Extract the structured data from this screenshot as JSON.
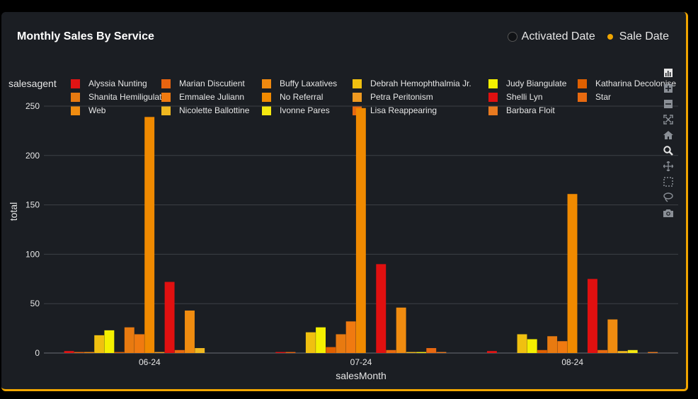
{
  "header": {
    "title": "Monthly Sales By Service",
    "radio_options": [
      {
        "label": "Activated Date",
        "selected": false
      },
      {
        "label": "Sale Date",
        "selected": true
      }
    ]
  },
  "legend_title": "salesagent",
  "colors": {
    "accent": "#f0a500",
    "card_bg": "#1b1e23",
    "grid": "#3c4046"
  },
  "modebar_icons": [
    "bar-chart-icon",
    "zoom-in-icon",
    "zoom-out-icon",
    "autoscale-icon",
    "home-icon",
    "zoom-icon",
    "pan-icon",
    "box-select-icon",
    "lasso-icon",
    "camera-icon"
  ],
  "chart_data": {
    "type": "bar",
    "xlabel": "salesMonth",
    "ylabel": "total",
    "ylim": [
      0,
      255
    ],
    "yticks": [
      0,
      50,
      100,
      150,
      200,
      250
    ],
    "categories": [
      "06-24",
      "07-24",
      "08-24"
    ],
    "grid": true,
    "legend_position": "top",
    "series": [
      {
        "name": "Alyssia Nunting",
        "color": "#e01414",
        "values": [
          2,
          1,
          2
        ]
      },
      {
        "name": "Marian Discutient",
        "color": "#e86410",
        "values": [
          1,
          1,
          0
        ]
      },
      {
        "name": "Buffy Laxatives",
        "color": "#f08a10",
        "values": [
          1,
          0,
          0
        ]
      },
      {
        "name": "Debrah Hemophthalmia Jr.",
        "color": "#f0c010",
        "values": [
          18,
          21,
          19
        ]
      },
      {
        "name": "Judy Biangulate",
        "color": "#f4f000",
        "values": [
          23,
          26,
          14
        ]
      },
      {
        "name": "Katharina Decolonise",
        "color": "#e06000",
        "values": [
          1,
          6,
          3
        ]
      },
      {
        "name": "Shanita Hemiligulate",
        "color": "#e87a10",
        "values": [
          26,
          19,
          17
        ]
      },
      {
        "name": "Emmalee Juliann",
        "color": "#f07a10",
        "values": [
          19,
          32,
          12
        ]
      },
      {
        "name": "No Referral",
        "color": "#f08a00",
        "values": [
          239,
          248,
          161
        ]
      },
      {
        "name": "Petra Peritonism",
        "color": "#f09a20",
        "values": [
          1,
          0,
          0
        ]
      },
      {
        "name": "Shelli Lyn",
        "color": "#e01010",
        "values": [
          72,
          90,
          75
        ]
      },
      {
        "name": "Star",
        "color": "#e86a10",
        "values": [
          3,
          3,
          3
        ]
      },
      {
        "name": "Web",
        "color": "#f08c10",
        "values": [
          43,
          46,
          34
        ]
      },
      {
        "name": "Nicolette Ballottine",
        "color": "#f0b820",
        "values": [
          5,
          1,
          2
        ]
      },
      {
        "name": "Ivonne Pares",
        "color": "#f4e810",
        "values": [
          0,
          1,
          3
        ]
      },
      {
        "name": "Lisa Reappearing",
        "color": "#e86810",
        "values": [
          0,
          5,
          0
        ]
      },
      {
        "name": "Barbara Floit",
        "color": "#e87a20",
        "values": [
          0,
          1,
          1
        ]
      }
    ]
  }
}
